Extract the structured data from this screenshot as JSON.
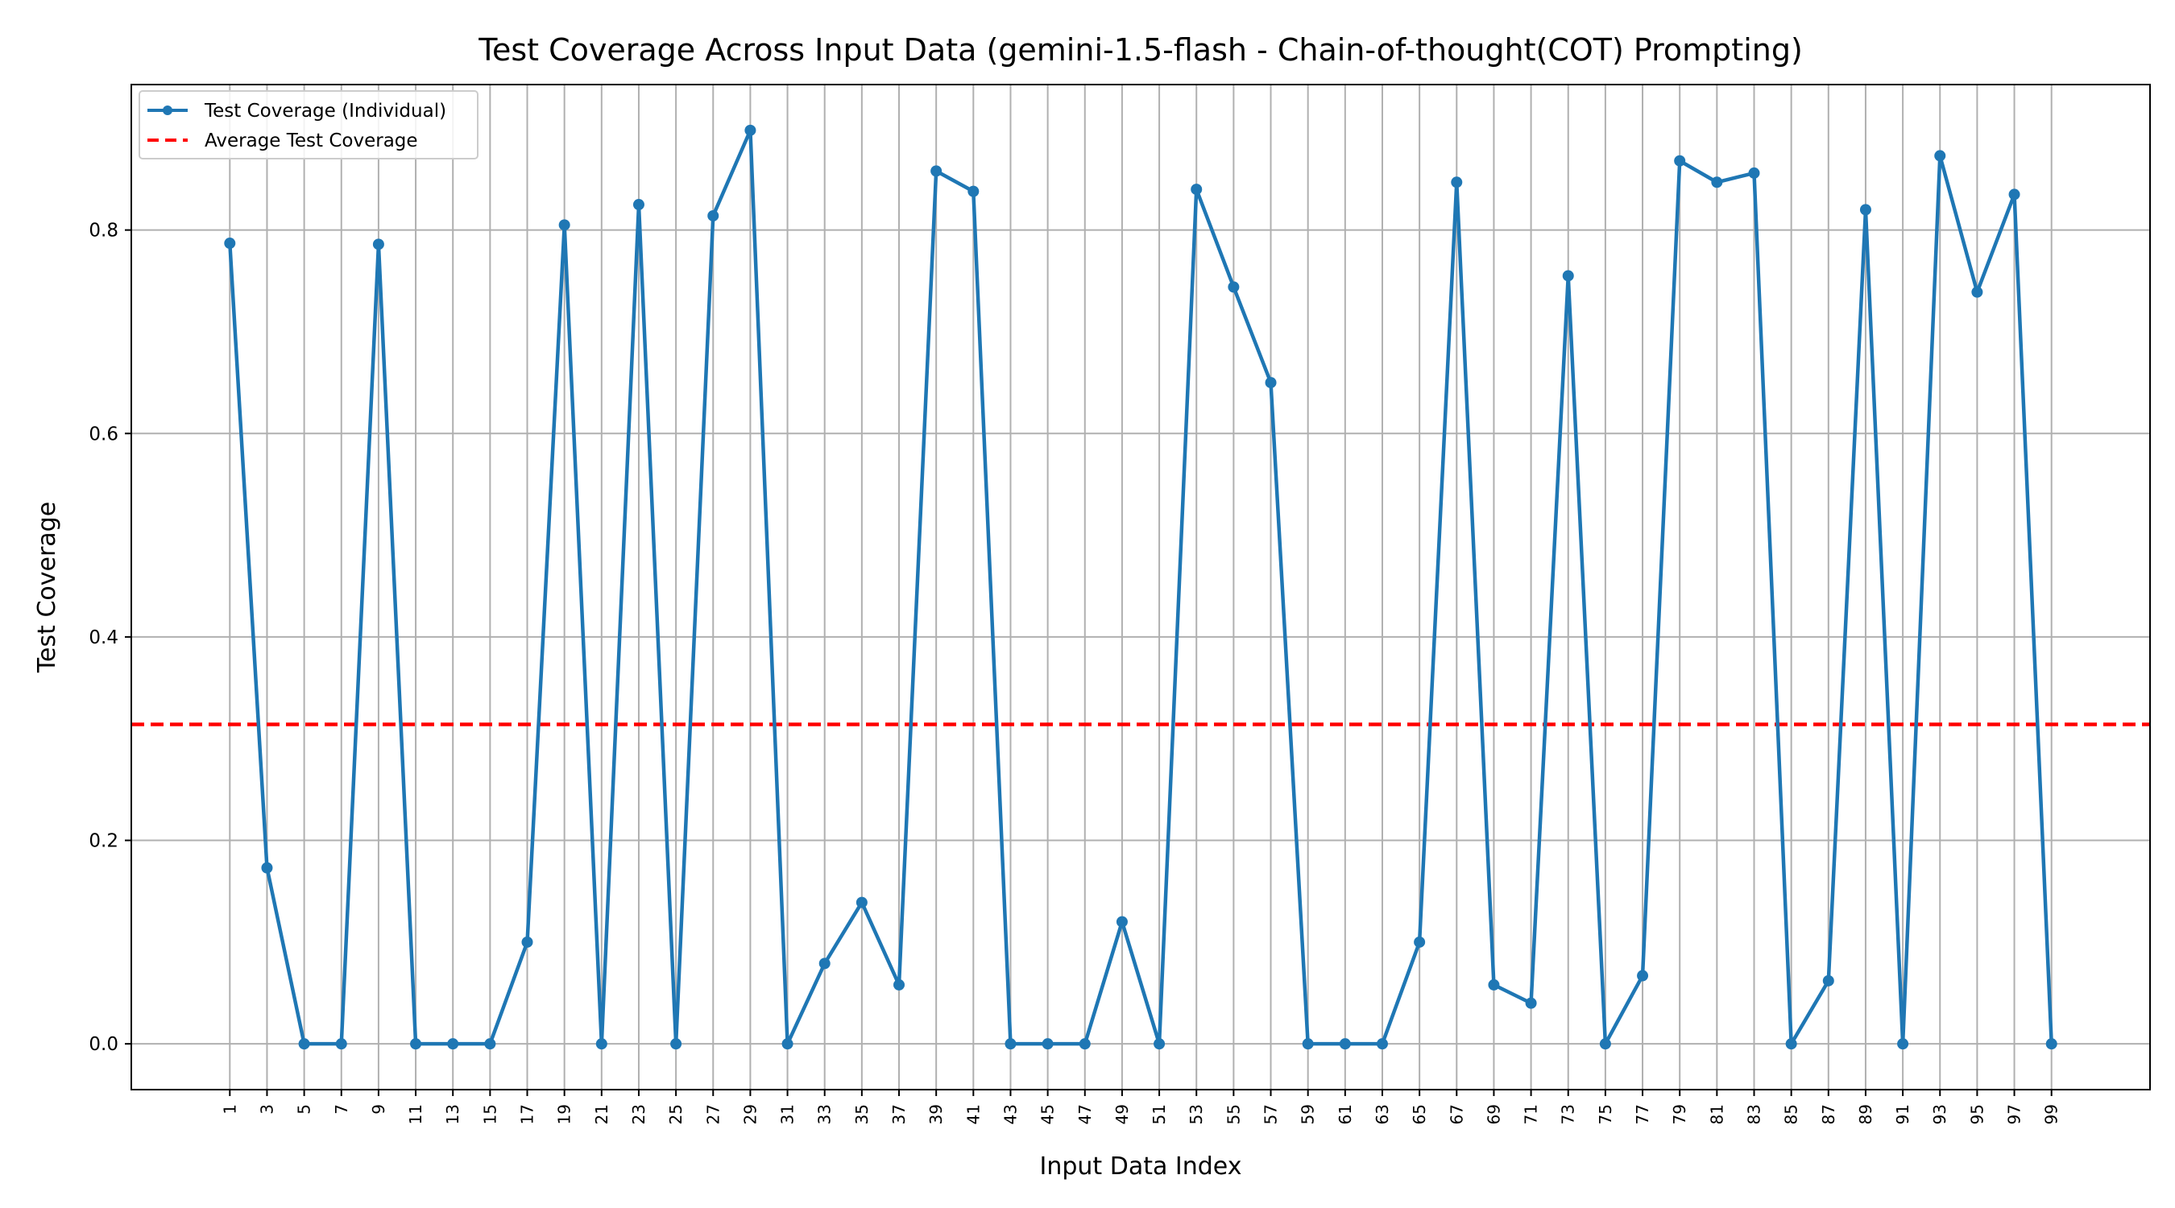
{
  "chart_data": {
    "type": "line",
    "title": "Test Coverage Across Input Data (gemini-1.5-flash - Chain-of-thought(COT) Prompting)",
    "xlabel": "Input Data Index",
    "ylabel": "Test Coverage",
    "x": [
      1,
      3,
      5,
      7,
      9,
      11,
      13,
      15,
      17,
      19,
      21,
      23,
      25,
      27,
      29,
      31,
      33,
      35,
      37,
      39,
      41,
      43,
      45,
      47,
      49,
      51,
      53,
      55,
      57,
      59,
      61,
      63,
      65,
      67,
      69,
      71,
      73,
      75,
      77,
      79,
      81,
      83,
      85,
      87,
      89,
      91,
      93,
      95,
      97,
      99
    ],
    "series": [
      {
        "name": "Test Coverage (Individual)",
        "color": "#1f77b4",
        "marker": "circle",
        "values": [
          0.787,
          0.173,
          0.0,
          0.0,
          0.786,
          0.0,
          0.0,
          0.0,
          0.1,
          0.805,
          0.0,
          0.825,
          0.0,
          0.814,
          0.898,
          0.0,
          0.079,
          0.139,
          0.058,
          0.858,
          0.838,
          0.0,
          0.0,
          0.0,
          0.12,
          0.0,
          0.84,
          0.744,
          0.65,
          0.0,
          0.0,
          0.0,
          0.1,
          0.847,
          0.058,
          0.04,
          0.755,
          0.0,
          0.067,
          0.868,
          0.847,
          0.856,
          0.0,
          0.062,
          0.82,
          0.0,
          0.873,
          0.739,
          0.835,
          0.0
        ]
      }
    ],
    "average": {
      "name": "Average Test Coverage",
      "value": 0.314,
      "color": "#ff0000",
      "style": "dashed"
    },
    "xlim": [
      -4.3,
      104.3
    ],
    "ylim": [
      -0.045,
      0.943
    ],
    "yticks": [
      0.0,
      0.2,
      0.4,
      0.6,
      0.8
    ],
    "ytick_labels": [
      "0.0",
      "0.2",
      "0.4",
      "0.6",
      "0.8"
    ],
    "grid": true,
    "legend_position": "top-left"
  }
}
